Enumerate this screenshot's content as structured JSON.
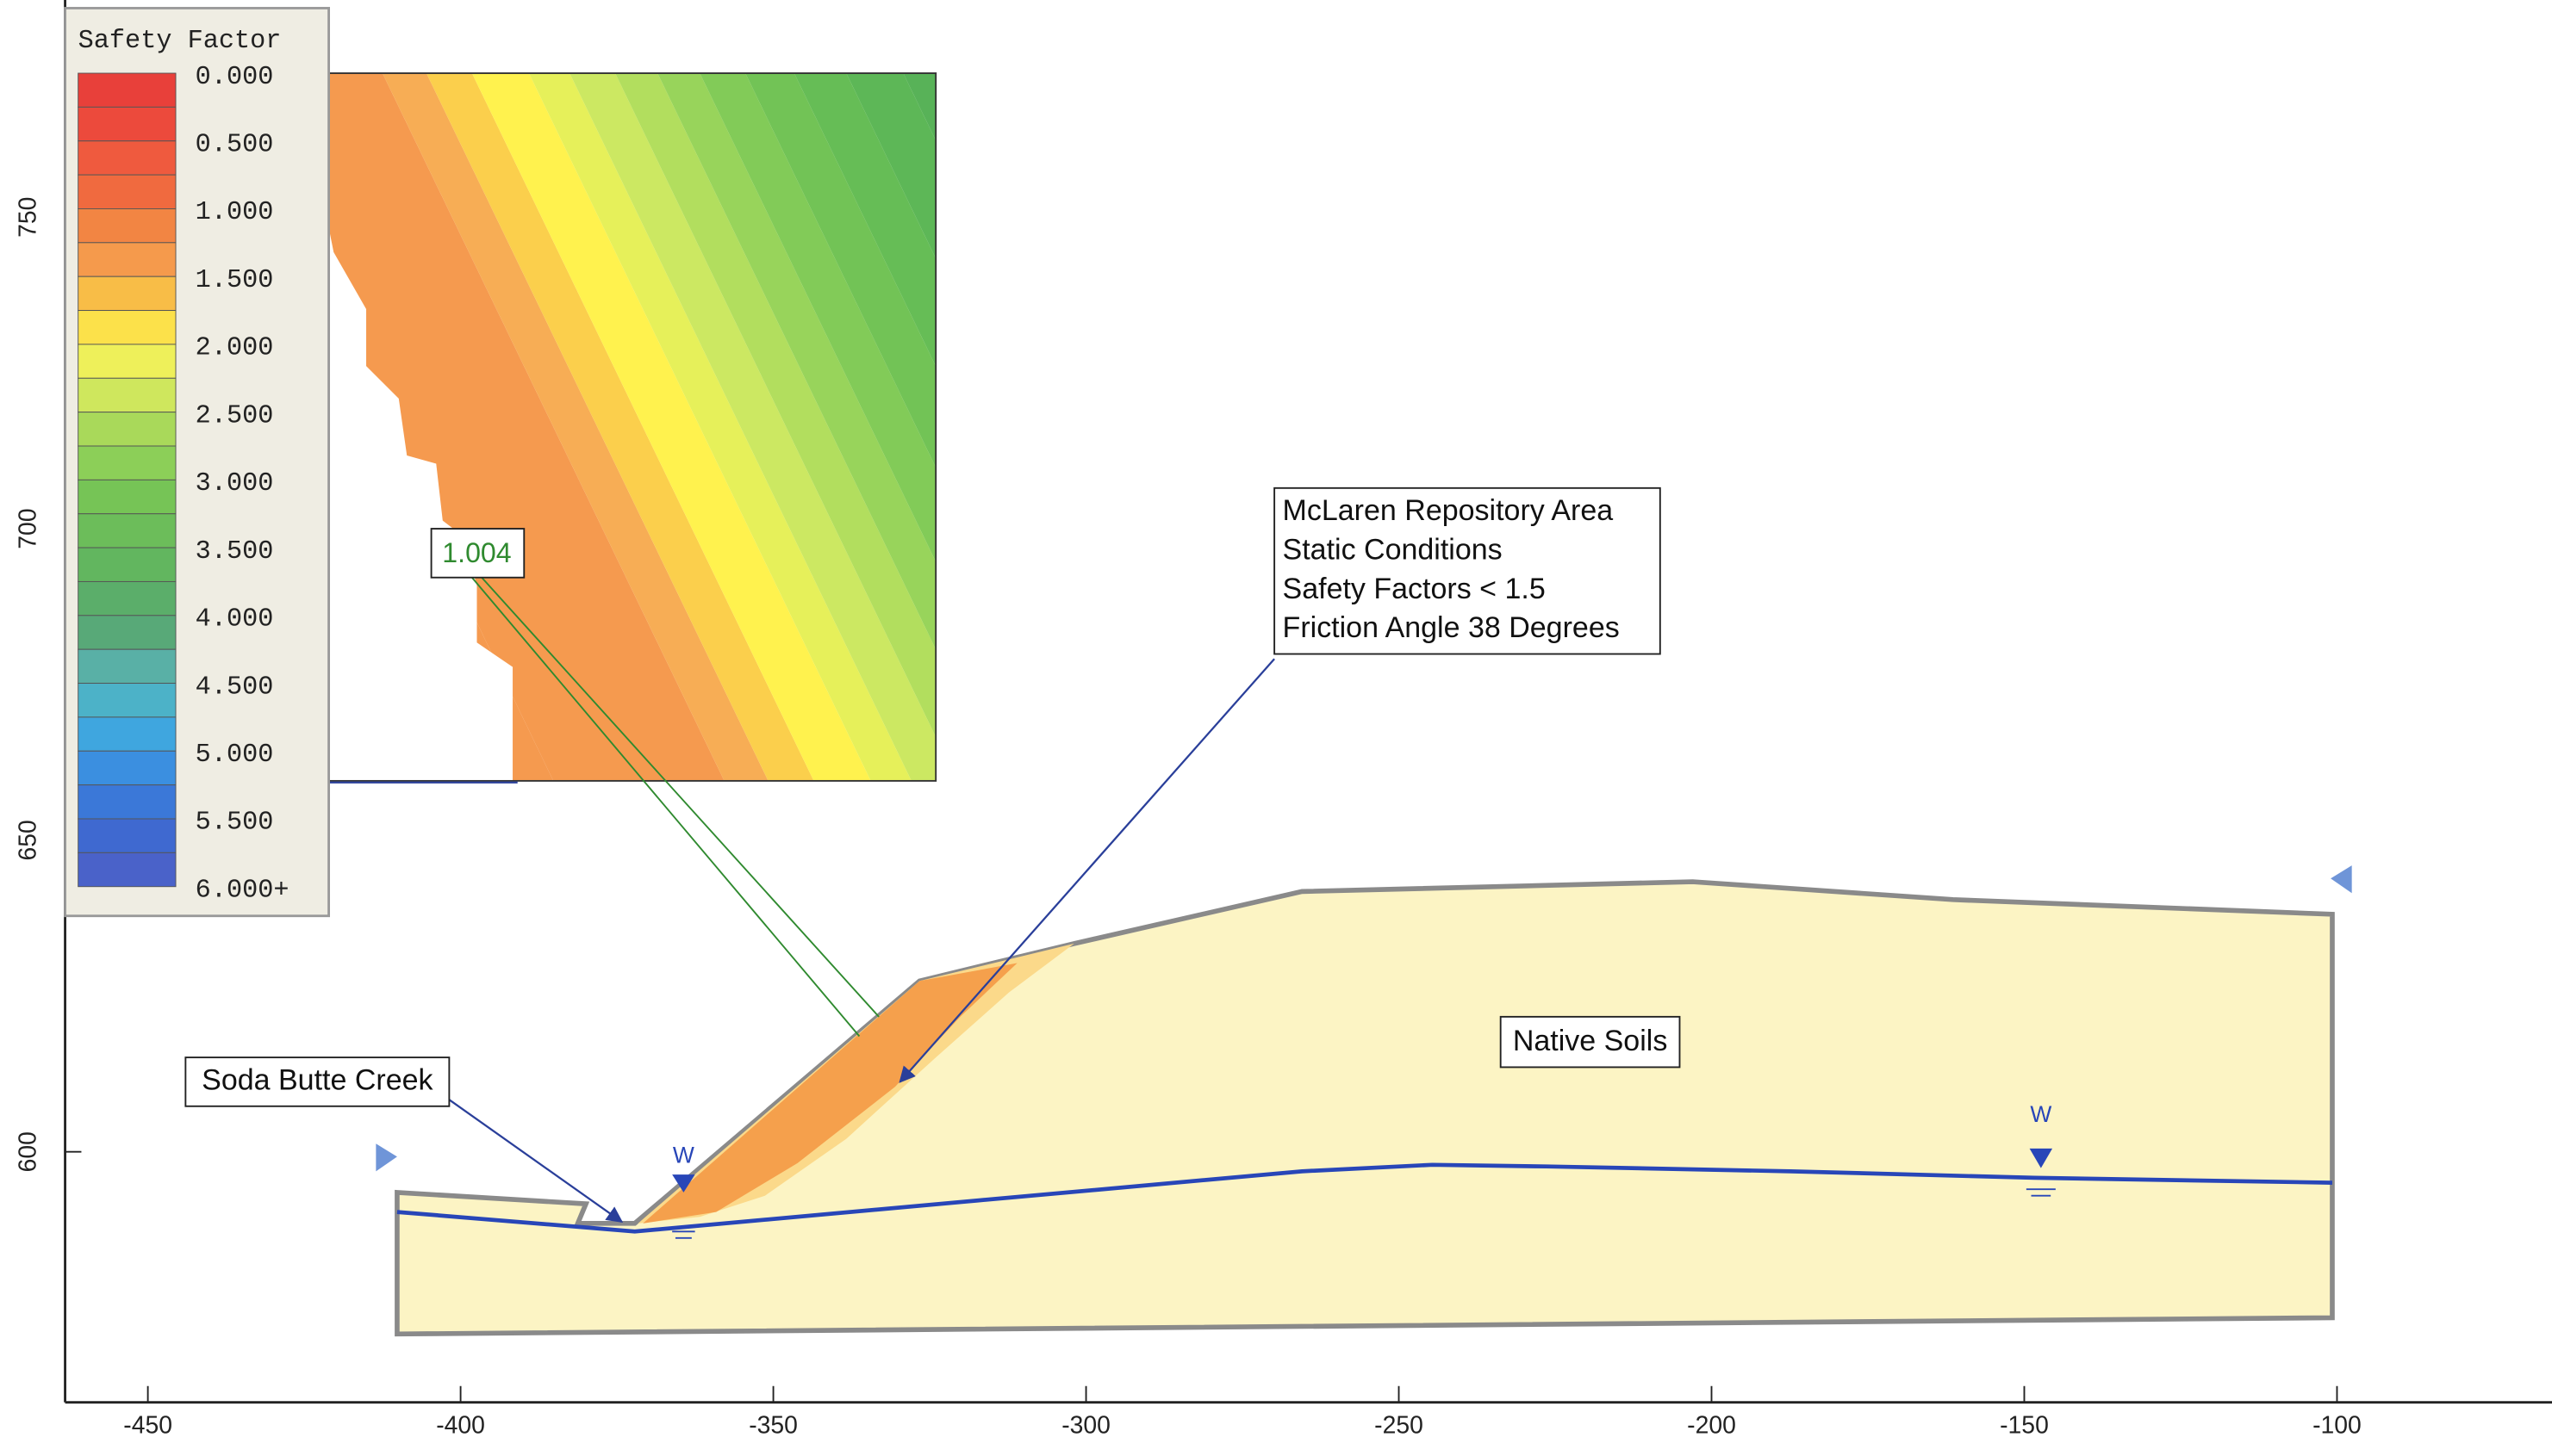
{
  "legend": {
    "title": "Safety Factor",
    "labels": [
      "0.000",
      "0.500",
      "1.000",
      "1.500",
      "2.000",
      "2.500",
      "3.000",
      "3.500",
      "4.000",
      "4.500",
      "5.000",
      "5.500",
      "6.000+"
    ]
  },
  "x_axis": {
    "ticks": [
      -450,
      -400,
      -350,
      -300,
      -250,
      -200,
      -150,
      -100
    ]
  },
  "y_axis": {
    "ticks": [
      600,
      650,
      700,
      750
    ]
  },
  "annotations": {
    "repository": [
      "McLaren Repository Area",
      "Static Conditions",
      "Safety Factors < 1.5",
      "Friction Angle 38 Degrees"
    ],
    "creek": "Soda Butte Creek",
    "soils": "Native Soils",
    "min_factor": "1.004",
    "water_markers": [
      "W",
      "W"
    ]
  }
}
